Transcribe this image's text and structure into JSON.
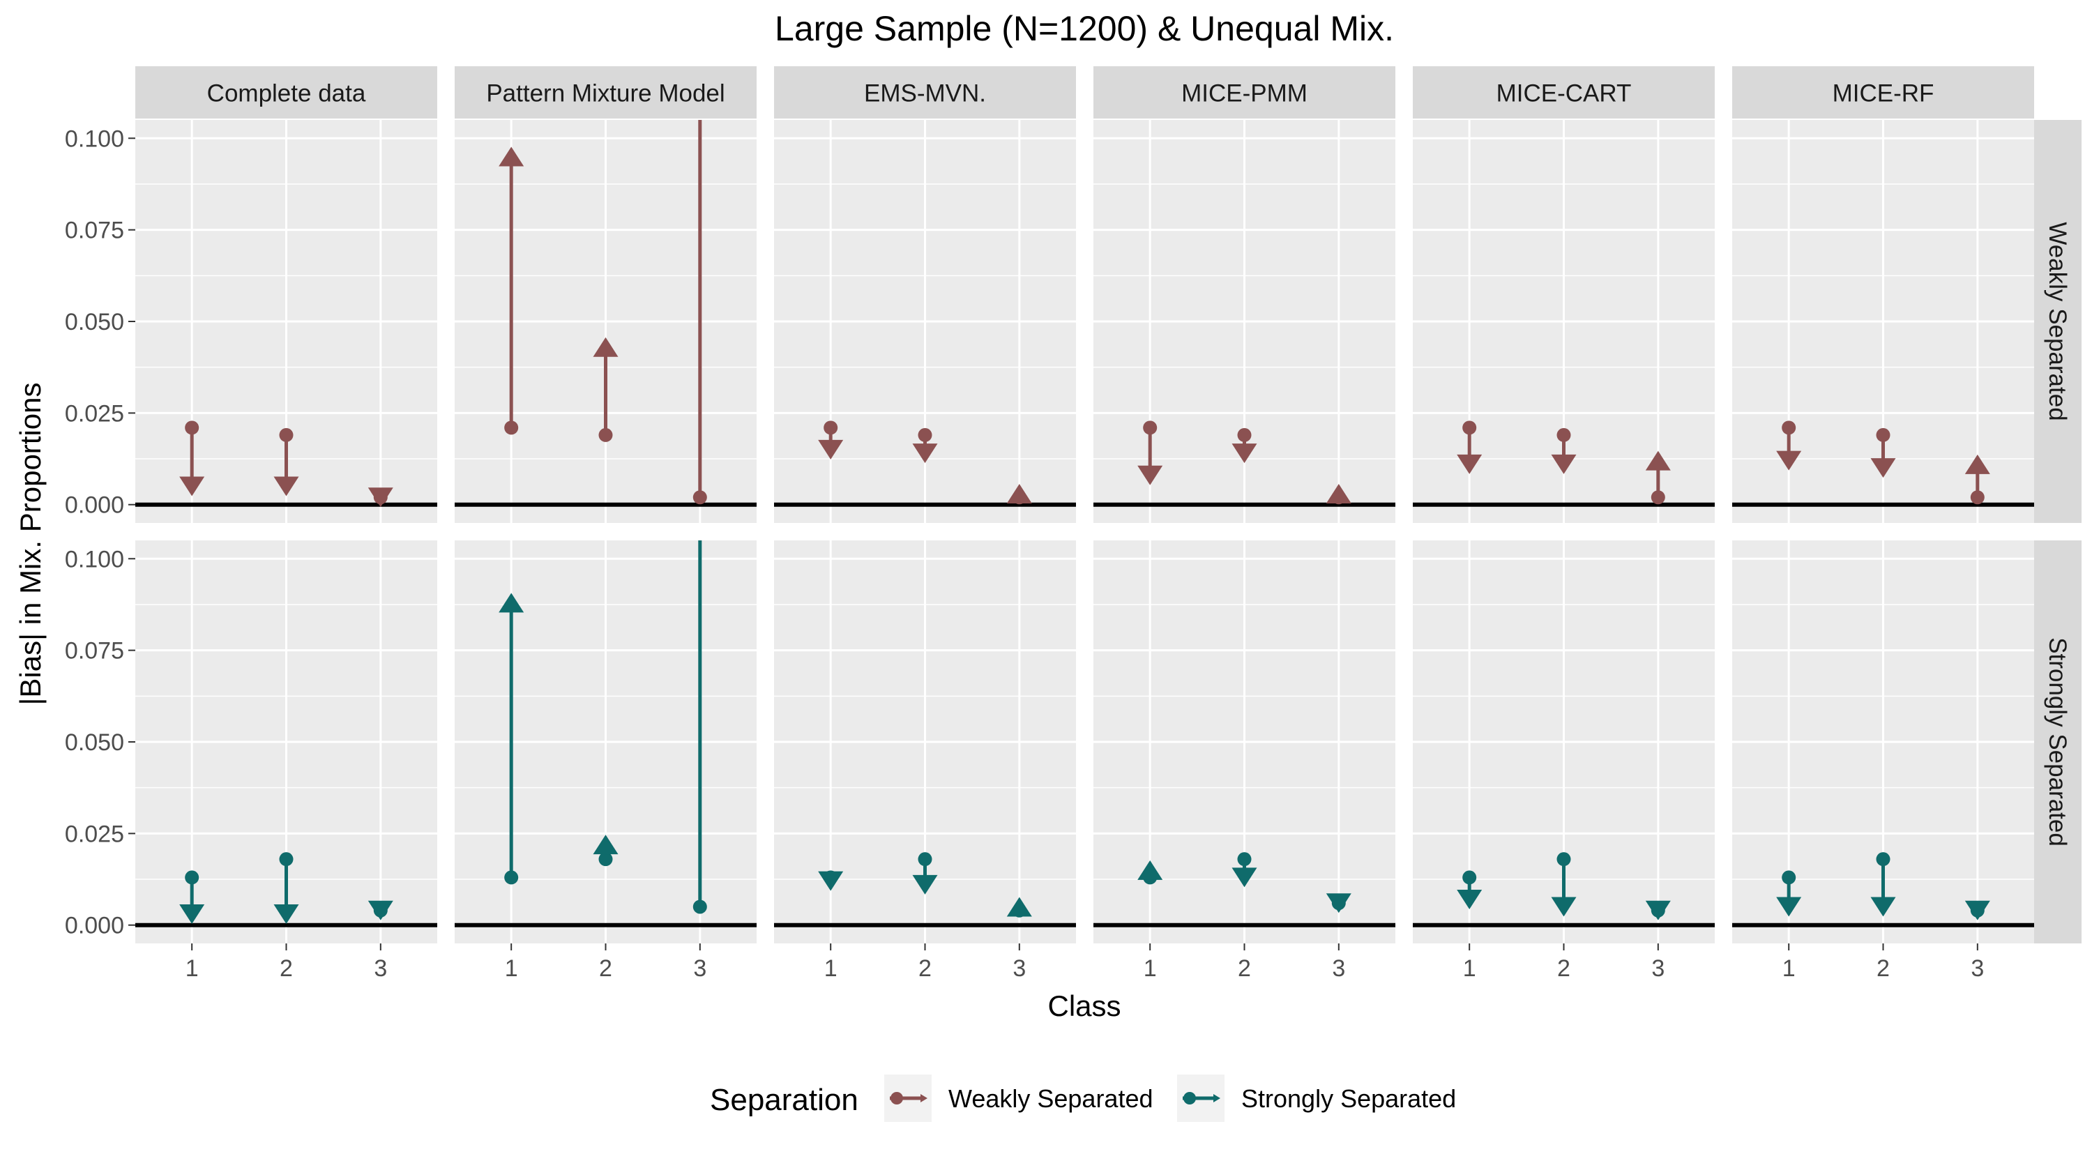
{
  "chart_data": {
    "type": "faceted-arrow",
    "title": "Large Sample (N=1200) & Unequal Mix.",
    "xlabel": "Class",
    "ylabel": "|Bias| in Mix. Proportions",
    "categories": [
      "1",
      "2",
      "3"
    ],
    "ylim": [
      -0.005,
      0.105
    ],
    "yticks": [
      "0.000",
      "0.025",
      "0.050",
      "0.075",
      "0.100"
    ],
    "ytick_values": [
      0,
      0.025,
      0.05,
      0.075,
      0.1
    ],
    "columns": [
      "Complete data",
      "Pattern Mixture Model",
      "EMS-MVN.",
      "MICE-PMM",
      "MICE-CART",
      "MICE-RF"
    ],
    "rows": [
      "Weakly Separated",
      "Strongly Separated"
    ],
    "legend": {
      "title": "Separation",
      "position": "bottom",
      "items": [
        {
          "label": "Weakly Separated",
          "color": "#8b5151"
        },
        {
          "label": "Strongly Separated",
          "color": "#0f6b6b"
        }
      ]
    },
    "series": [
      {
        "name": "Weakly Separated",
        "color": "#8b5151",
        "panels": [
          {
            "from": [
              0.021,
              0.019,
              0.002
            ],
            "to": [
              0.005,
              0.005,
              0.002
            ]
          },
          {
            "from": [
              0.021,
              0.019,
              0.002
            ],
            "to": [
              0.095,
              0.043,
              0.12
            ]
          },
          {
            "from": [
              0.021,
              0.019,
              0.002
            ],
            "to": [
              0.015,
              0.014,
              0.003
            ]
          },
          {
            "from": [
              0.021,
              0.019,
              0.002
            ],
            "to": [
              0.008,
              0.014,
              0.003
            ]
          },
          {
            "from": [
              0.021,
              0.019,
              0.002
            ],
            "to": [
              0.011,
              0.011,
              0.012
            ]
          },
          {
            "from": [
              0.021,
              0.019,
              0.002
            ],
            "to": [
              0.012,
              0.01,
              0.011
            ]
          }
        ]
      },
      {
        "name": "Strongly Separated",
        "color": "#0f6b6b",
        "panels": [
          {
            "from": [
              0.013,
              0.018,
              0.004
            ],
            "to": [
              0.003,
              0.003,
              0.004
            ]
          },
          {
            "from": [
              0.013,
              0.018,
              0.005
            ],
            "to": [
              0.088,
              0.022,
              0.12
            ]
          },
          {
            "from": [
              0.013,
              0.018,
              0.004
            ],
            "to": [
              0.012,
              0.011,
              0.005
            ]
          },
          {
            "from": [
              0.013,
              0.018,
              0.006
            ],
            "to": [
              0.015,
              0.013,
              0.006
            ]
          },
          {
            "from": [
              0.013,
              0.018,
              0.004
            ],
            "to": [
              0.007,
              0.005,
              0.004
            ]
          },
          {
            "from": [
              0.013,
              0.018,
              0.004
            ],
            "to": [
              0.005,
              0.005,
              0.004
            ]
          }
        ]
      }
    ]
  }
}
